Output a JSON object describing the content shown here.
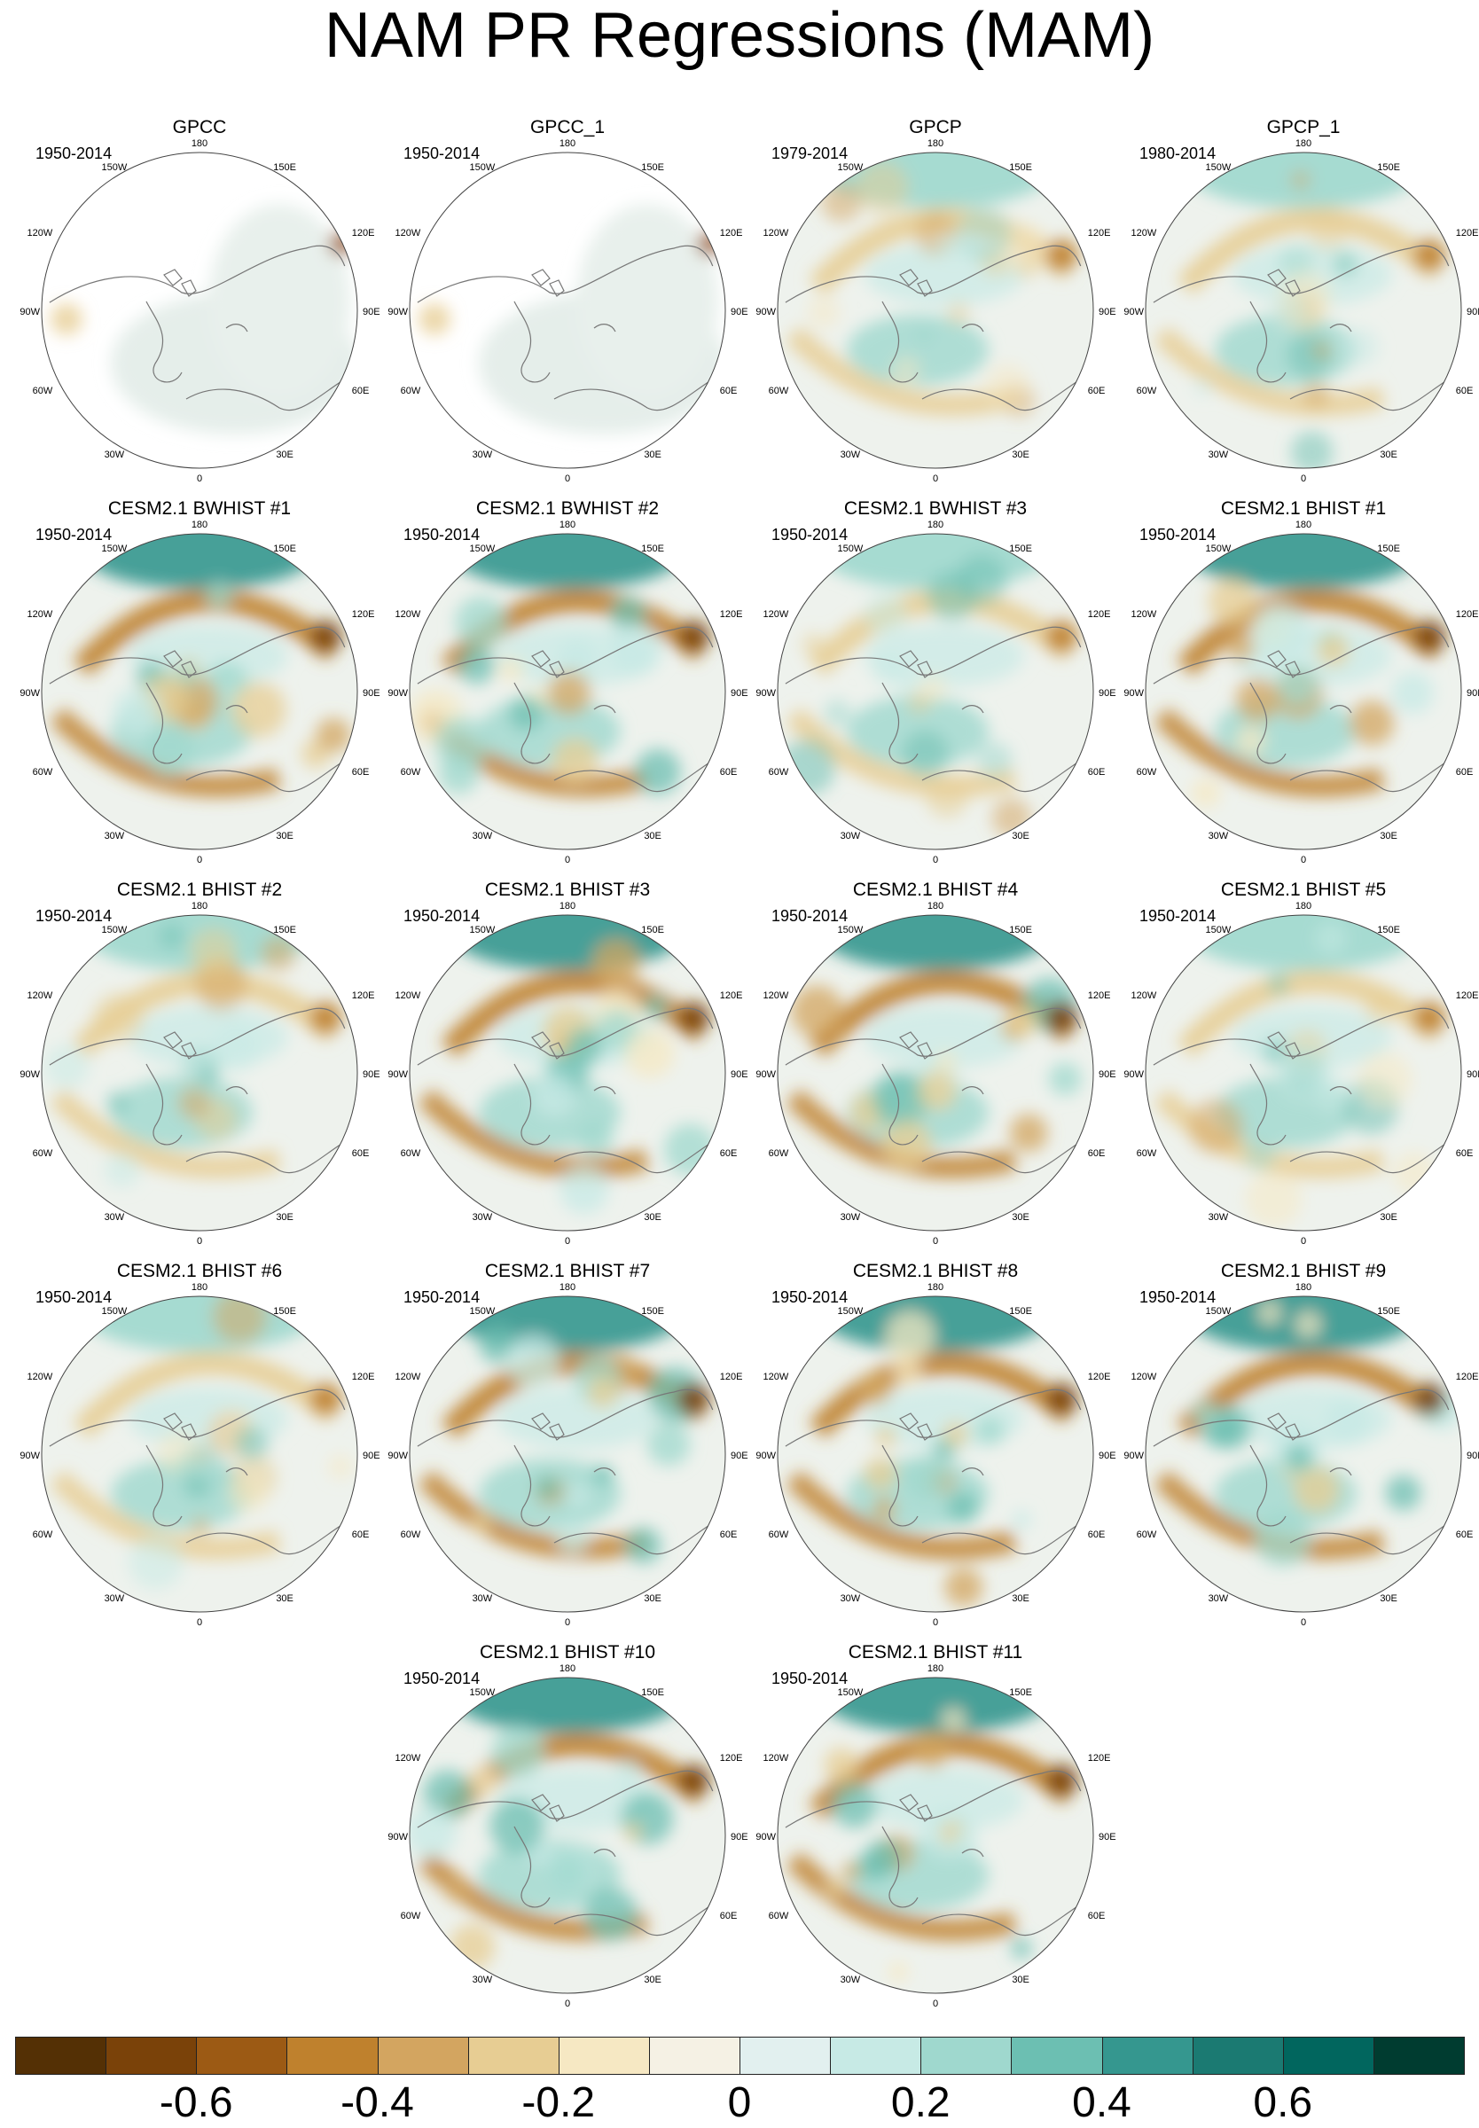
{
  "title": "NAM PR Regressions (MAM)",
  "map_labels": {
    "top": "180",
    "bottom": "0",
    "left": "90W",
    "right": "90E",
    "upper_left_1": "150W",
    "upper_right_1": "150E",
    "upper_left_2": "120W",
    "upper_right_2": "120E",
    "lower_left_1": "60W",
    "lower_right_1": "60E",
    "lower_left_2": "30W",
    "lower_right_2": "30E"
  },
  "panels": [
    {
      "title": "GPCC",
      "period": "1950-2014",
      "style": "obs_sparse"
    },
    {
      "title": "GPCC_1",
      "period": "1950-2014",
      "style": "obs_sparse"
    },
    {
      "title": "GPCP",
      "period": "1979-2014",
      "style": "obs"
    },
    {
      "title": "GPCP_1",
      "period": "1980-2014",
      "style": "obs"
    },
    {
      "title": "CESM2.1 BWHIST #1",
      "period": "1950-2014",
      "style": "model"
    },
    {
      "title": "CESM2.1 BWHIST #2",
      "period": "1950-2014",
      "style": "model"
    },
    {
      "title": "CESM2.1 BWHIST #3",
      "period": "1950-2014",
      "style": "model_weak"
    },
    {
      "title": "CESM2.1 BHIST #1",
      "period": "1950-2014",
      "style": "model"
    },
    {
      "title": "CESM2.1 BHIST #2",
      "period": "1950-2014",
      "style": "model_weak"
    },
    {
      "title": "CESM2.1 BHIST #3",
      "period": "1950-2014",
      "style": "model"
    },
    {
      "title": "CESM2.1 BHIST #4",
      "period": "1950-2014",
      "style": "model"
    },
    {
      "title": "CESM2.1 BHIST #5",
      "period": "1950-2014",
      "style": "model_weak"
    },
    {
      "title": "CESM2.1 BHIST #6",
      "period": "1950-2014",
      "style": "model_weak"
    },
    {
      "title": "CESM2.1 BHIST #7",
      "period": "1950-2014",
      "style": "model"
    },
    {
      "title": "CESM2.1 BHIST #8",
      "period": "1950-2014",
      "style": "model"
    },
    {
      "title": "CESM2.1 BHIST #9",
      "period": "1950-2014",
      "style": "model"
    },
    {
      "title": "CESM2.1 BHIST #10",
      "period": "1950-2014",
      "style": "model"
    },
    {
      "title": "CESM2.1 BHIST #11",
      "period": "1950-2014",
      "style": "model"
    }
  ],
  "colorbar": {
    "colors": [
      "#543005",
      "#7a4209",
      "#9c5a14",
      "#bf812d",
      "#d3a560",
      "#e7cd93",
      "#f6e8c3",
      "#f5f1e4",
      "#e2f0ef",
      "#c7eae5",
      "#9fd8ce",
      "#6cbfb2",
      "#35978f",
      "#1b7a72",
      "#01665e",
      "#003c30"
    ],
    "tick_labels": [
      "-0.6",
      "-0.4",
      "-0.2",
      "0",
      "0.2",
      "0.4",
      "0.6"
    ]
  }
}
